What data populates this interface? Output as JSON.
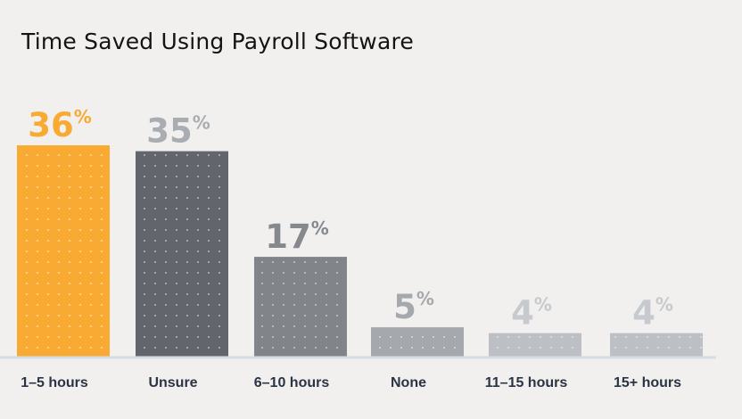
{
  "chart_data": {
    "type": "bar",
    "title": "Time Saved Using Payroll Software",
    "xlabel": "",
    "ylabel": "",
    "unit": "%",
    "ylim": [
      0,
      36
    ],
    "grid": false,
    "legend": "none",
    "categories": [
      "1–5 hours",
      "Unsure",
      "6–10 hours",
      "None",
      "11–15 hours",
      "15+ hours"
    ],
    "values": [
      36,
      35,
      17,
      5,
      4,
      4
    ],
    "bar_colors": [
      "#f9aa33",
      "#62656c",
      "#818489",
      "#a5a8ad",
      "#bcbfc3",
      "#bcbfc3"
    ],
    "label_colors": [
      "#f9aa33",
      "#a9acb1",
      "#85888d",
      "#a5a8ad",
      "#c6c9cd",
      "#c6c9cd"
    ]
  }
}
